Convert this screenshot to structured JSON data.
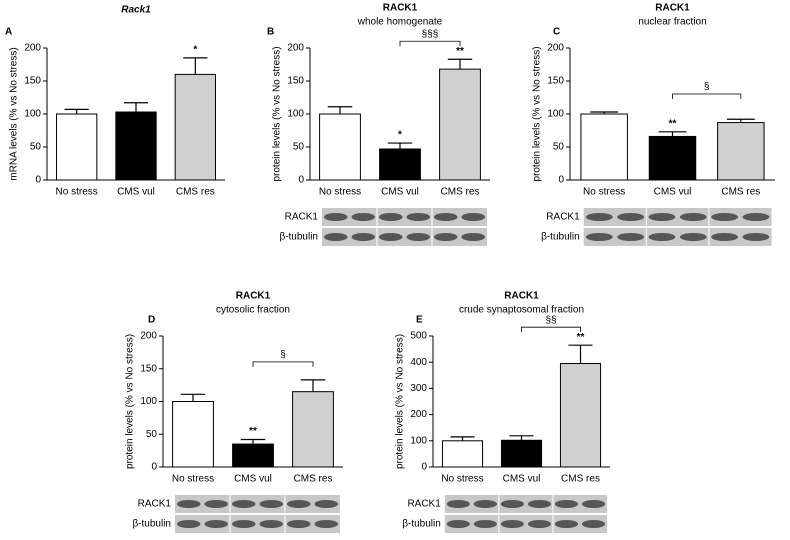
{
  "chart_data": [
    {
      "type": "bar",
      "panel": "A",
      "title": "Rack1",
      "y_label": "mRNA levels (% vs No stress)",
      "categories": [
        "No stress",
        "CMS vul",
        "CMS res"
      ],
      "values": [
        100,
        103,
        160
      ],
      "errors": [
        7,
        14,
        25
      ],
      "colors": [
        "#ffffff",
        "#000000",
        "#d0d0d0"
      ],
      "stars": [
        null,
        null,
        "*"
      ],
      "ylim": [
        0,
        200
      ],
      "yticks": [
        0,
        50,
        100,
        150,
        200
      ]
    },
    {
      "type": "bar",
      "panel": "B",
      "title": "RACK1",
      "subtitle": "whole homogenate",
      "y_label": "protein levels (% vs No stress)",
      "categories": [
        "No stress",
        "CMS vul",
        "CMS res"
      ],
      "values": [
        100,
        47,
        168
      ],
      "errors": [
        11,
        9,
        15
      ],
      "colors": [
        "#ffffff",
        "#000000",
        "#d0d0d0"
      ],
      "stars": [
        null,
        "*",
        "**"
      ],
      "bracket": {
        "label": "§§§",
        "between": [
          "CMS vul",
          "CMS res"
        ]
      },
      "blot_labels": [
        "RACK1",
        "β-tubulin"
      ],
      "ylim": [
        0,
        200
      ],
      "yticks": [
        0,
        50,
        100,
        150,
        200
      ]
    },
    {
      "type": "bar",
      "panel": "C",
      "title": "RACK1",
      "subtitle": "nuclear fraction",
      "y_label": "protein levels (% vs No stress)",
      "categories": [
        "No stress",
        "CMS vul",
        "CMS res"
      ],
      "values": [
        100,
        66,
        87
      ],
      "errors": [
        3,
        7,
        5
      ],
      "colors": [
        "#ffffff",
        "#000000",
        "#d0d0d0"
      ],
      "stars": [
        null,
        "**",
        null
      ],
      "bracket": {
        "label": "§",
        "between": [
          "CMS vul",
          "CMS res"
        ]
      },
      "blot_labels": [
        "RACK1",
        "β-tubulin"
      ],
      "ylim": [
        0,
        200
      ],
      "yticks": [
        0,
        50,
        100,
        150,
        200
      ]
    },
    {
      "type": "bar",
      "panel": "D",
      "title": "RACK1",
      "subtitle": "cytosolic fraction",
      "y_label": "protein levels (% vs No stress)",
      "categories": [
        "No stress",
        "CMS vul",
        "CMS res"
      ],
      "values": [
        100,
        35,
        115
      ],
      "errors": [
        11,
        7,
        18
      ],
      "colors": [
        "#ffffff",
        "#000000",
        "#d0d0d0"
      ],
      "stars": [
        null,
        "**",
        null
      ],
      "bracket": {
        "label": "§",
        "between": [
          "CMS vul",
          "CMS res"
        ]
      },
      "blot_labels": [
        "RACK1",
        "β-tubulin"
      ],
      "ylim": [
        0,
        200
      ],
      "yticks": [
        0,
        50,
        100,
        150,
        200
      ]
    },
    {
      "type": "bar",
      "panel": "E",
      "title": "RACK1",
      "subtitle": "crude synaptosomal fraction",
      "y_label": "protein levels (% vs No stress)",
      "categories": [
        "No stress",
        "CMS vul",
        "CMS res"
      ],
      "values": [
        100,
        102,
        395
      ],
      "errors": [
        15,
        17,
        70
      ],
      "colors": [
        "#ffffff",
        "#000000",
        "#d0d0d0"
      ],
      "stars": [
        null,
        null,
        "**"
      ],
      "bracket": {
        "label": "§§",
        "between": [
          "CMS vul",
          "CMS res"
        ]
      },
      "blot_labels": [
        "RACK1",
        "β-tubulin"
      ],
      "ylim": [
        0,
        500
      ],
      "yticks": [
        0,
        100,
        200,
        300,
        400,
        500
      ]
    }
  ]
}
